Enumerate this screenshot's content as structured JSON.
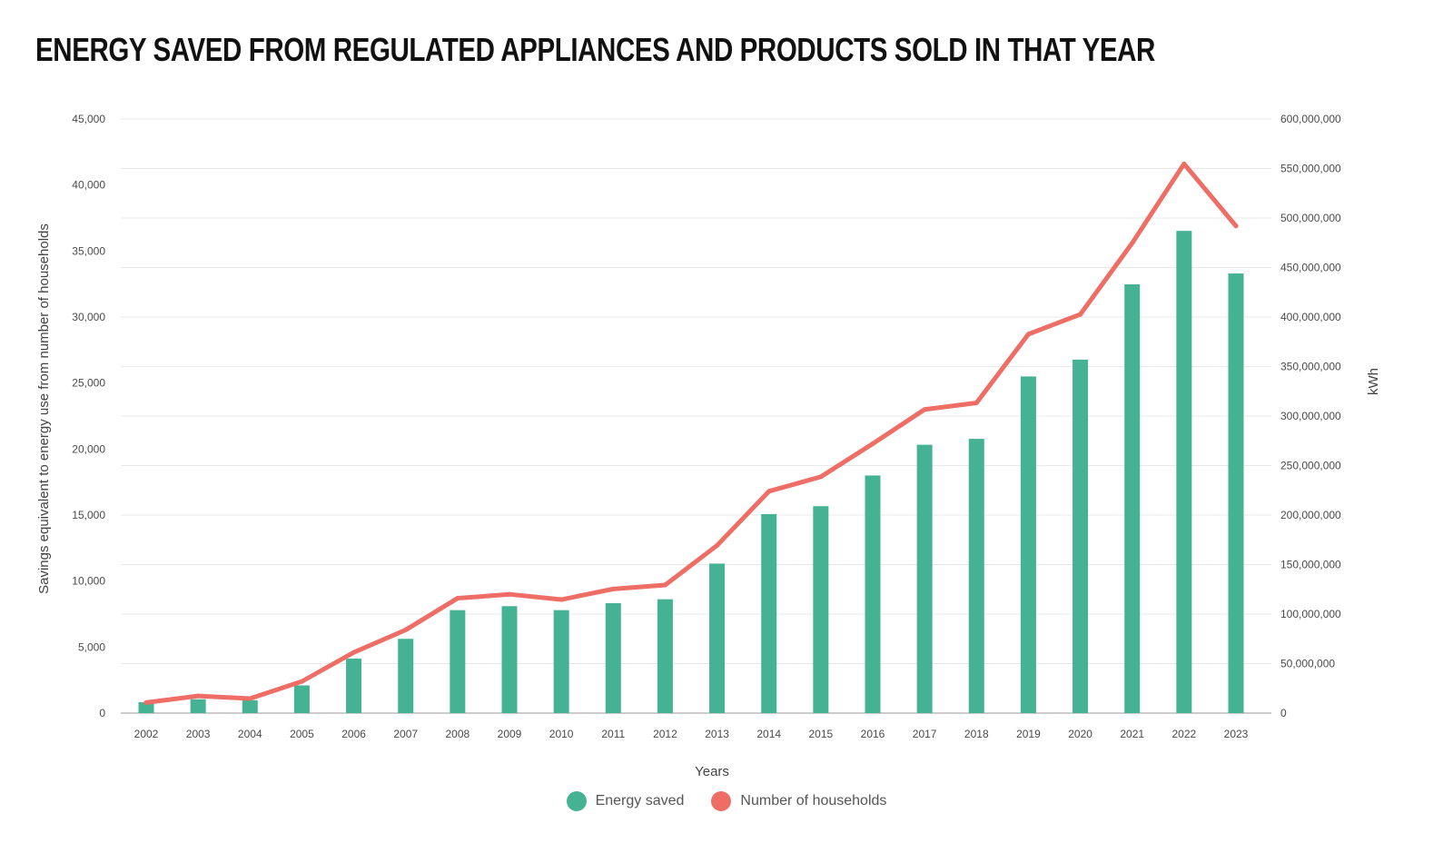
{
  "title": "ENERGY SAVED FROM REGULATED APPLIANCES AND PRODUCTS SOLD IN THAT YEAR",
  "chart_data": {
    "type": "bar",
    "title": "ENERGY SAVED FROM REGULATED APPLIANCES AND PRODUCTS SOLD IN THAT YEAR",
    "xlabel": "Years",
    "ylabel_left": "Savings equivalent to energy use from number of households",
    "ylabel_right": "kWh",
    "categories": [
      "2002",
      "2003",
      "2004",
      "2005",
      "2006",
      "2007",
      "2008",
      "2009",
      "2010",
      "2011",
      "2012",
      "2013",
      "2014",
      "2015",
      "2016",
      "2017",
      "2018",
      "2019",
      "2020",
      "2021",
      "2022",
      "2023"
    ],
    "y_left_range": [
      0,
      45000
    ],
    "y_left_ticks": [
      "0",
      "5,000",
      "10,000",
      "15,000",
      "20,000",
      "25,000",
      "30,000",
      "35,000",
      "40,000",
      "45,000"
    ],
    "y_right_range": [
      0,
      600000000
    ],
    "y_right_ticks": [
      "0",
      "50,000,000",
      "100,000,000",
      "150,000,000",
      "200,000,000",
      "250,000,000",
      "300,000,000",
      "350,000,000",
      "400,000,000",
      "450,000,000",
      "500,000,000",
      "550,000,000",
      "600,000,000"
    ],
    "grid": true,
    "legend_position": "bottom-center",
    "series": [
      {
        "name": "Energy saved",
        "type": "bar",
        "axis": "right",
        "color": "#45b393",
        "values": [
          11000000,
          14000000,
          13000000,
          28000000,
          55000000,
          75000000,
          104000000,
          108000000,
          104000000,
          111000000,
          115000000,
          151000000,
          201000000,
          209000000,
          240000000,
          271000000,
          277000000,
          340000000,
          357000000,
          433000000,
          487000000,
          444000000
        ]
      },
      {
        "name": "Number of households",
        "type": "line",
        "axis": "left",
        "color": "#ee6e66",
        "values": [
          800,
          1300,
          1100,
          2400,
          4600,
          6300,
          8700,
          9000,
          8600,
          9400,
          9700,
          12700,
          16800,
          17900,
          20400,
          23000,
          23500,
          28700,
          30200,
          35600,
          41600,
          36900
        ]
      }
    ]
  }
}
